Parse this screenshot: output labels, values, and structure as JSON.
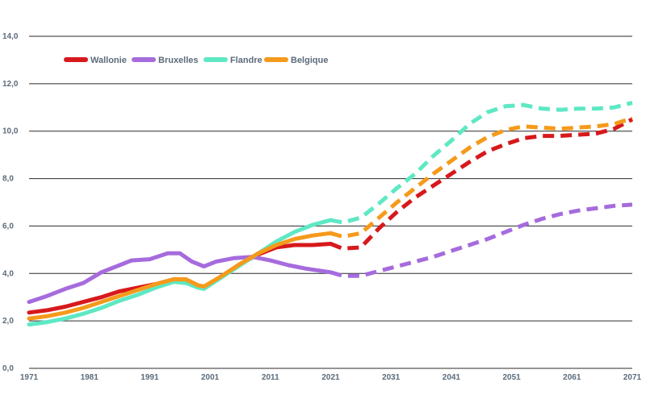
{
  "chart_data": {
    "type": "line",
    "title": "",
    "xlabel": "",
    "ylabel": "",
    "xlim": [
      1971,
      2071
    ],
    "ylim": [
      0,
      14
    ],
    "grid": "horizontal",
    "legend_position": "top-left",
    "x_ticks": [
      "1971",
      "1981",
      "1991",
      "2001",
      "2011",
      "2021",
      "2031",
      "2041",
      "2051",
      "2061",
      "2071"
    ],
    "y_ticks": [
      "0,0",
      "2,0",
      "4,0",
      "6,0",
      "8,0",
      "10,0",
      "12,0",
      "14,0"
    ],
    "observed_until": 2021,
    "series": [
      {
        "name": "Wallonie",
        "color": "#d7191c",
        "points": [
          [
            1971,
            2.35
          ],
          [
            1974,
            2.45
          ],
          [
            1977,
            2.6
          ],
          [
            1980,
            2.8
          ],
          [
            1983,
            3.0
          ],
          [
            1986,
            3.25
          ],
          [
            1989,
            3.4
          ],
          [
            1992,
            3.55
          ],
          [
            1995,
            3.75
          ],
          [
            1997,
            3.75
          ],
          [
            1999,
            3.5
          ],
          [
            2000,
            3.4
          ],
          [
            2003,
            3.9
          ],
          [
            2006,
            4.4
          ],
          [
            2009,
            4.8
          ],
          [
            2012,
            5.1
          ],
          [
            2015,
            5.2
          ],
          [
            2018,
            5.2
          ],
          [
            2021,
            5.25
          ],
          [
            2023,
            5.05
          ],
          [
            2026,
            5.1
          ],
          [
            2029,
            5.9
          ],
          [
            2032,
            6.6
          ],
          [
            2035,
            7.2
          ],
          [
            2038,
            7.7
          ],
          [
            2041,
            8.2
          ],
          [
            2044,
            8.7
          ],
          [
            2047,
            9.15
          ],
          [
            2050,
            9.45
          ],
          [
            2053,
            9.7
          ],
          [
            2056,
            9.8
          ],
          [
            2059,
            9.8
          ],
          [
            2062,
            9.85
          ],
          [
            2065,
            9.9
          ],
          [
            2068,
            10.1
          ],
          [
            2071,
            10.5
          ]
        ]
      },
      {
        "name": "Bruxelles",
        "color": "#a66bdd",
        "points": [
          [
            1971,
            2.8
          ],
          [
            1974,
            3.05
          ],
          [
            1977,
            3.35
          ],
          [
            1980,
            3.6
          ],
          [
            1983,
            4.05
          ],
          [
            1986,
            4.35
          ],
          [
            1988,
            4.55
          ],
          [
            1991,
            4.6
          ],
          [
            1994,
            4.85
          ],
          [
            1996,
            4.85
          ],
          [
            1998,
            4.5
          ],
          [
            2000,
            4.3
          ],
          [
            2002,
            4.5
          ],
          [
            2005,
            4.65
          ],
          [
            2008,
            4.7
          ],
          [
            2011,
            4.55
          ],
          [
            2014,
            4.35
          ],
          [
            2017,
            4.2
          ],
          [
            2021,
            4.05
          ],
          [
            2023,
            3.9
          ],
          [
            2026,
            3.9
          ],
          [
            2029,
            4.1
          ],
          [
            2032,
            4.3
          ],
          [
            2035,
            4.5
          ],
          [
            2038,
            4.7
          ],
          [
            2041,
            4.95
          ],
          [
            2044,
            5.2
          ],
          [
            2047,
            5.45
          ],
          [
            2050,
            5.75
          ],
          [
            2053,
            6.05
          ],
          [
            2056,
            6.3
          ],
          [
            2059,
            6.5
          ],
          [
            2062,
            6.65
          ],
          [
            2065,
            6.75
          ],
          [
            2068,
            6.85
          ],
          [
            2071,
            6.9
          ]
        ]
      },
      {
        "name": "Flandre",
        "color": "#5ee8c4",
        "points": [
          [
            1971,
            1.85
          ],
          [
            1974,
            1.95
          ],
          [
            1977,
            2.1
          ],
          [
            1980,
            2.3
          ],
          [
            1983,
            2.55
          ],
          [
            1986,
            2.85
          ],
          [
            1989,
            3.1
          ],
          [
            1992,
            3.4
          ],
          [
            1995,
            3.65
          ],
          [
            1997,
            3.6
          ],
          [
            1999,
            3.4
          ],
          [
            2000,
            3.35
          ],
          [
            2003,
            3.85
          ],
          [
            2006,
            4.35
          ],
          [
            2009,
            4.85
          ],
          [
            2012,
            5.35
          ],
          [
            2015,
            5.75
          ],
          [
            2018,
            6.05
          ],
          [
            2021,
            6.25
          ],
          [
            2023,
            6.15
          ],
          [
            2026,
            6.35
          ],
          [
            2029,
            6.95
          ],
          [
            2032,
            7.6
          ],
          [
            2035,
            8.2
          ],
          [
            2038,
            8.95
          ],
          [
            2041,
            9.6
          ],
          [
            2044,
            10.3
          ],
          [
            2047,
            10.8
          ],
          [
            2050,
            11.05
          ],
          [
            2053,
            11.1
          ],
          [
            2056,
            10.95
          ],
          [
            2059,
            10.9
          ],
          [
            2062,
            10.95
          ],
          [
            2065,
            10.95
          ],
          [
            2068,
            11.0
          ],
          [
            2071,
            11.2
          ]
        ]
      },
      {
        "name": "Belgique",
        "color": "#f59a1b",
        "points": [
          [
            1971,
            2.1
          ],
          [
            1974,
            2.2
          ],
          [
            1977,
            2.35
          ],
          [
            1980,
            2.55
          ],
          [
            1983,
            2.8
          ],
          [
            1986,
            3.05
          ],
          [
            1989,
            3.3
          ],
          [
            1992,
            3.55
          ],
          [
            1995,
            3.75
          ],
          [
            1997,
            3.75
          ],
          [
            1999,
            3.5
          ],
          [
            2000,
            3.45
          ],
          [
            2003,
            3.9
          ],
          [
            2006,
            4.4
          ],
          [
            2009,
            4.85
          ],
          [
            2012,
            5.2
          ],
          [
            2015,
            5.45
          ],
          [
            2018,
            5.6
          ],
          [
            2021,
            5.7
          ],
          [
            2023,
            5.55
          ],
          [
            2026,
            5.7
          ],
          [
            2029,
            6.35
          ],
          [
            2032,
            7.0
          ],
          [
            2035,
            7.6
          ],
          [
            2038,
            8.2
          ],
          [
            2041,
            8.75
          ],
          [
            2044,
            9.3
          ],
          [
            2047,
            9.75
          ],
          [
            2050,
            10.05
          ],
          [
            2053,
            10.2
          ],
          [
            2056,
            10.15
          ],
          [
            2059,
            10.1
          ],
          [
            2062,
            10.15
          ],
          [
            2065,
            10.2
          ],
          [
            2068,
            10.3
          ],
          [
            2071,
            10.55
          ]
        ]
      }
    ]
  }
}
